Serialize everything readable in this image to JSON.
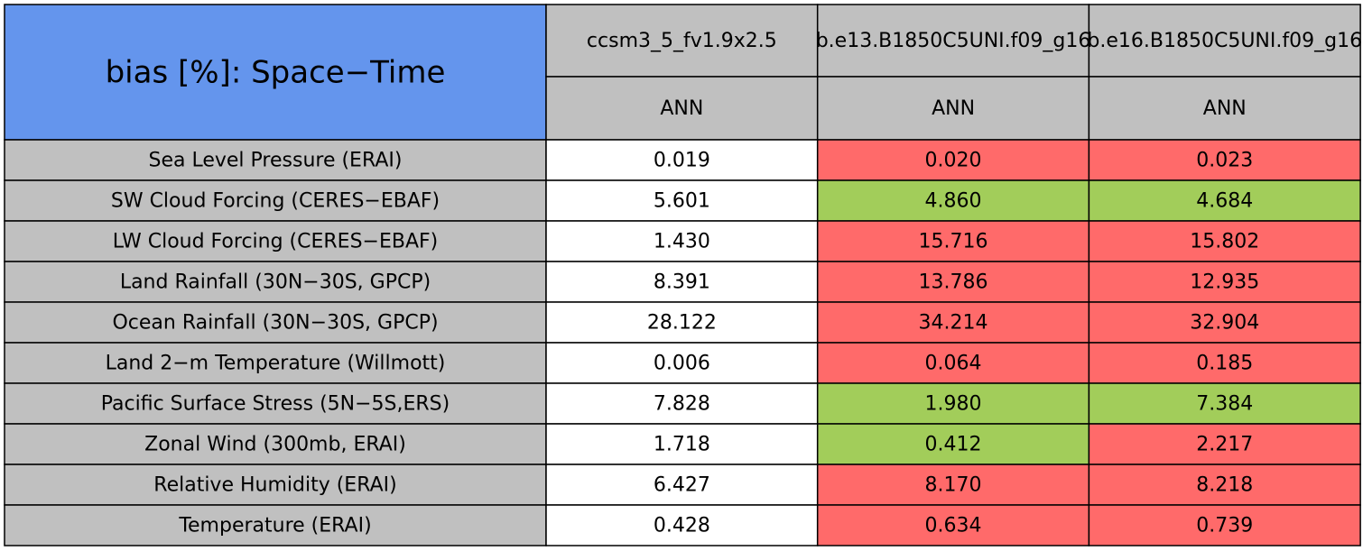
{
  "table": {
    "title": "bias [%]: Space−Time",
    "title_color": "#6495ed",
    "header_color": "#c0c0c0",
    "columns": [
      {
        "name": "ccsm3_5_fv1.9x2.5",
        "season": "ANN"
      },
      {
        "name": "b.e13.B1850C5UNI.f09_g16",
        "season": "ANN"
      },
      {
        "name": "b.e16.B1850C5UNI.f09_g16",
        "season": "ANN"
      }
    ],
    "rows": [
      {
        "label": "Sea Level Pressure (ERAI)",
        "values": [
          "0.019",
          "0.020",
          "0.023"
        ],
        "colors": [
          "#ffffff",
          "#ff6a6a",
          "#ff6a6a"
        ]
      },
      {
        "label": "SW Cloud Forcing (CERES−EBAF)",
        "values": [
          "5.601",
          "4.860",
          "4.684"
        ],
        "colors": [
          "#ffffff",
          "#a2cd5a",
          "#a2cd5a"
        ]
      },
      {
        "label": "LW Cloud Forcing (CERES−EBAF)",
        "values": [
          "1.430",
          "15.716",
          "15.802"
        ],
        "colors": [
          "#ffffff",
          "#ff6a6a",
          "#ff6a6a"
        ]
      },
      {
        "label": "Land Rainfall (30N−30S, GPCP)",
        "values": [
          "8.391",
          "13.786",
          "12.935"
        ],
        "colors": [
          "#ffffff",
          "#ff6a6a",
          "#ff6a6a"
        ]
      },
      {
        "label": "Ocean Rainfall (30N−30S, GPCP)",
        "values": [
          "28.122",
          "34.214",
          "32.904"
        ],
        "colors": [
          "#ffffff",
          "#ff6a6a",
          "#ff6a6a"
        ]
      },
      {
        "label": "Land 2−m Temperature (Willmott)",
        "values": [
          "0.006",
          "0.064",
          "0.185"
        ],
        "colors": [
          "#ffffff",
          "#ff6a6a",
          "#ff6a6a"
        ]
      },
      {
        "label": "Pacific Surface Stress (5N−5S,ERS)",
        "values": [
          "7.828",
          "1.980",
          "7.384"
        ],
        "colors": [
          "#ffffff",
          "#a2cd5a",
          "#a2cd5a"
        ]
      },
      {
        "label": "Zonal Wind (300mb, ERAI)",
        "values": [
          "1.718",
          "0.412",
          "2.217"
        ],
        "colors": [
          "#ffffff",
          "#a2cd5a",
          "#ff6a6a"
        ]
      },
      {
        "label": "Relative Humidity (ERAI)",
        "values": [
          "6.427",
          "8.170",
          "8.218"
        ],
        "colors": [
          "#ffffff",
          "#ff6a6a",
          "#ff6a6a"
        ]
      },
      {
        "label": "Temperature (ERAI)",
        "values": [
          "0.428",
          "0.634",
          "0.739"
        ],
        "colors": [
          "#ffffff",
          "#ff6a6a",
          "#ff6a6a"
        ]
      }
    ]
  }
}
